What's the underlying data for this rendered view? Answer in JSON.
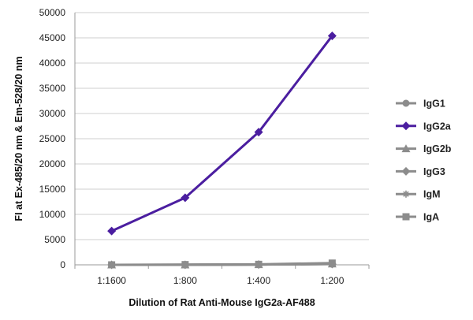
{
  "chart_data": {
    "type": "line",
    "xlabel": "Dilution of Rat Anti-Mouse IgG2a-AF488",
    "ylabel": "FI at Ex-485/20 nm & Em-528/20 nm",
    "categories": [
      "1:1600",
      "1:800",
      "1:400",
      "1:200"
    ],
    "ylim": [
      0,
      50000
    ],
    "yticks": [
      0,
      5000,
      10000,
      15000,
      20000,
      25000,
      30000,
      35000,
      40000,
      45000,
      50000
    ],
    "grid": "horizontal",
    "legend_position": "right",
    "series": [
      {
        "name": "IgG1",
        "marker": "circle",
        "color": "#8c8c8c",
        "values": [
          0,
          0,
          50,
          150
        ]
      },
      {
        "name": "IgG2a",
        "marker": "diamond",
        "color": "#4b1ea0",
        "values": [
          6700,
          13300,
          26300,
          45400
        ]
      },
      {
        "name": "IgG2b",
        "marker": "triangle",
        "color": "#8c8c8c",
        "values": [
          0,
          0,
          50,
          200
        ]
      },
      {
        "name": "IgG3",
        "marker": "diamond",
        "color": "#8c8c8c",
        "values": [
          0,
          0,
          50,
          150
        ]
      },
      {
        "name": "IgM",
        "marker": "star",
        "color": "#8c8c8c",
        "values": [
          0,
          0,
          50,
          200
        ]
      },
      {
        "name": "IgA",
        "marker": "square",
        "color": "#8c8c8c",
        "values": [
          0,
          50,
          100,
          350
        ]
      }
    ]
  }
}
